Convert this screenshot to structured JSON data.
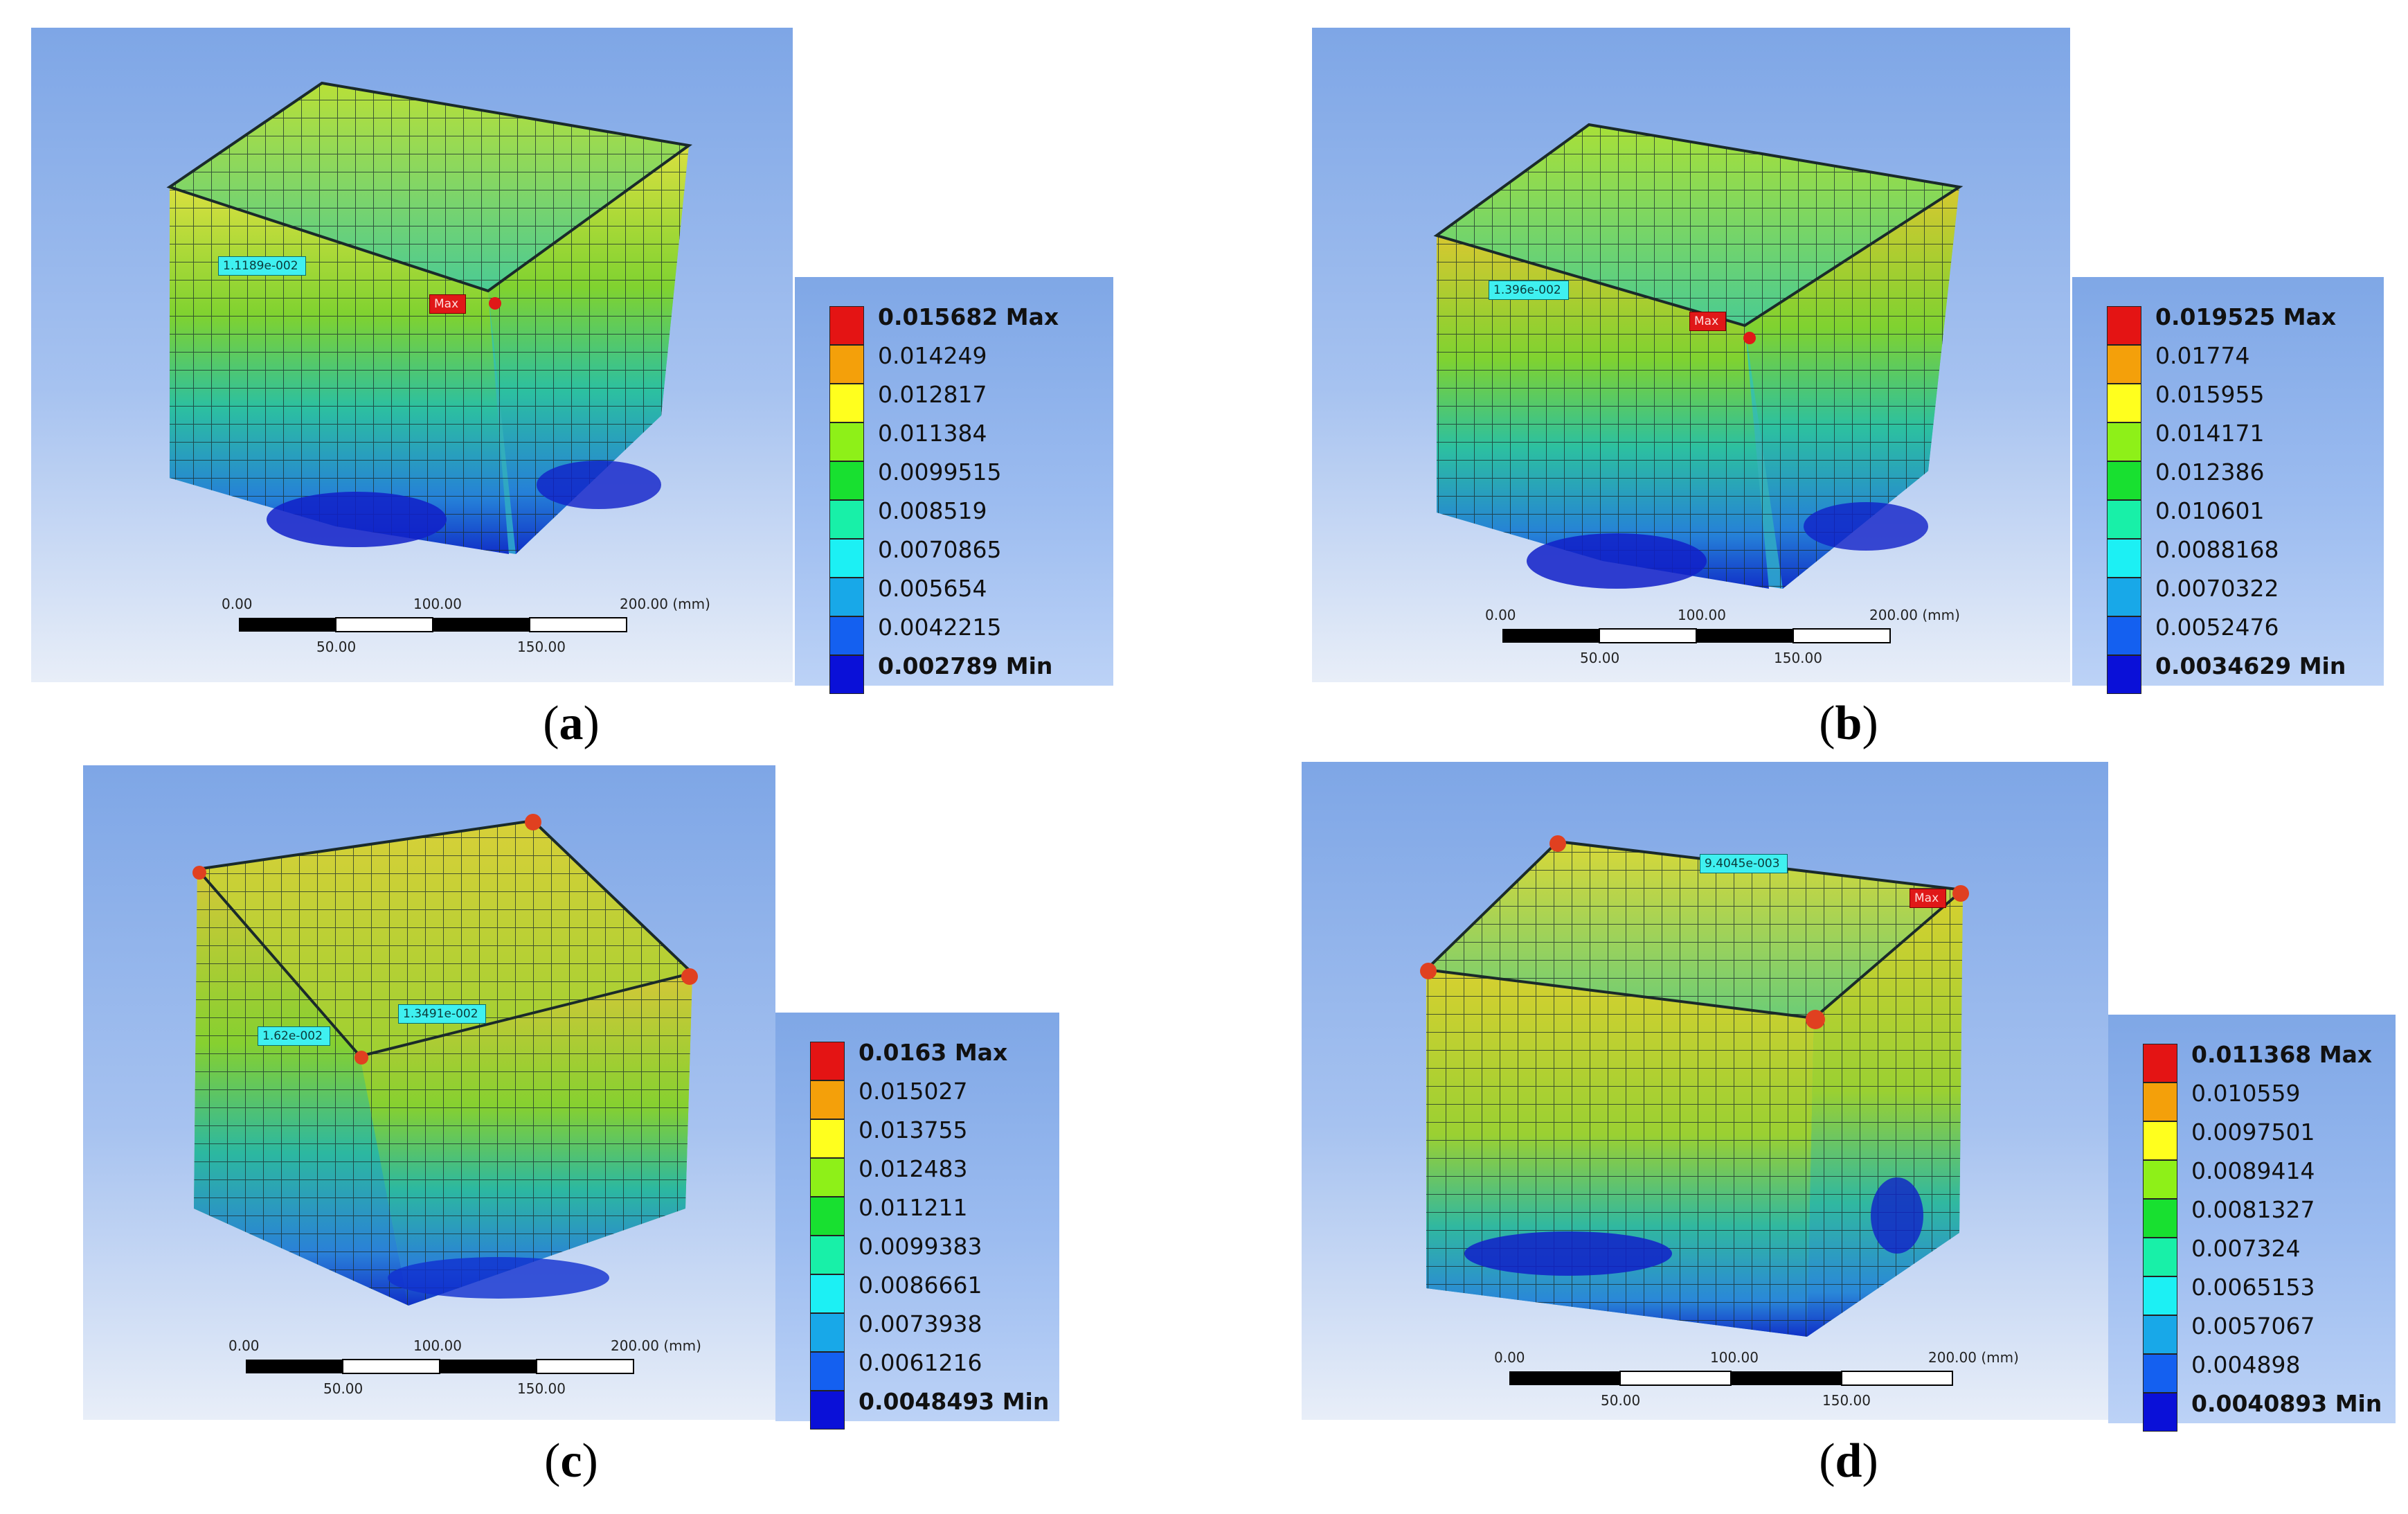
{
  "panels": [
    {
      "caption": "a",
      "probe_value": "1.1189e-002",
      "max_tag": "Max",
      "legend": {
        "labels": [
          "0.015682 Max",
          "0.014249",
          "0.012817",
          "0.011384",
          "0.0099515",
          "0.008519",
          "0.0070865",
          "0.005654",
          "0.0042215",
          "0.002789 Min"
        ]
      },
      "scale": {
        "top_ticks": [
          "0.00",
          "100.00",
          "200.00 (mm)"
        ],
        "bottom_ticks": [
          "50.00",
          "150.00"
        ]
      }
    },
    {
      "caption": "b",
      "probe_value": "1.396e-002",
      "max_tag": "Max",
      "legend": {
        "labels": [
          "0.019525 Max",
          "0.01774",
          "0.015955",
          "0.014171",
          "0.012386",
          "0.010601",
          "0.0088168",
          "0.0070322",
          "0.0052476",
          "0.0034629 Min"
        ]
      },
      "scale": {
        "top_ticks": [
          "0.00",
          "100.00",
          "200.00 (mm)"
        ],
        "bottom_ticks": [
          "50.00",
          "150.00"
        ]
      }
    },
    {
      "caption": "c",
      "probe_value": "1.62e-002",
      "probe_value_2": "1.3491e-002",
      "legend": {
        "labels": [
          "0.0163 Max",
          "0.015027",
          "0.013755",
          "0.012483",
          "0.011211",
          "0.0099383",
          "0.0086661",
          "0.0073938",
          "0.0061216",
          "0.0048493 Min"
        ]
      },
      "scale": {
        "top_ticks": [
          "0.00",
          "100.00",
          "200.00 (mm)"
        ],
        "bottom_ticks": [
          "50.00",
          "150.00"
        ]
      }
    },
    {
      "caption": "d",
      "probe_value": "9.4045e-003",
      "max_tag": "Max",
      "legend": {
        "labels": [
          "0.011368 Max",
          "0.010559",
          "0.0097501",
          "0.0089414",
          "0.0081327",
          "0.007324",
          "0.0065153",
          "0.0057067",
          "0.004898",
          "0.0040893 Min"
        ]
      },
      "scale": {
        "top_ticks": [
          "0.00",
          "100.00",
          "200.00 (mm)"
        ],
        "bottom_ticks": [
          "50.00",
          "150.00"
        ]
      }
    }
  ],
  "legend_colors": [
    "#e41414",
    "#f4a00a",
    "#ffff1e",
    "#8ef018",
    "#18e030",
    "#18f0a8",
    "#1cf0f4",
    "#18a8e8",
    "#1460f0",
    "#0a10d8"
  ]
}
